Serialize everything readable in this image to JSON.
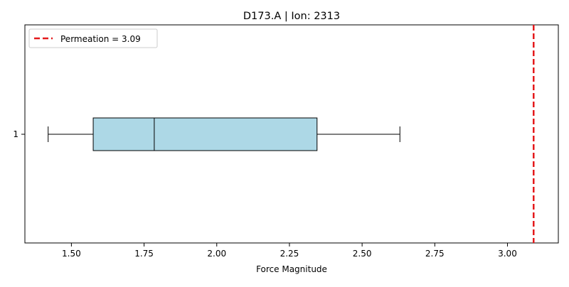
{
  "chart_data": {
    "type": "boxplot",
    "orientation": "horizontal",
    "title": "D173.A | Ion: 2313",
    "xlabel": "Force Magnitude",
    "ylabel": "",
    "xlim": [
      1.34,
      3.175
    ],
    "xticks": [
      "1.50",
      "1.75",
      "2.00",
      "2.25",
      "2.50",
      "2.75",
      "3.00"
    ],
    "xtick_values": [
      1.5,
      1.75,
      2.0,
      2.25,
      2.5,
      2.75,
      3.0
    ],
    "yticks": [
      "1"
    ],
    "box": {
      "category": "1",
      "whisker_low": 1.42,
      "q1": 1.575,
      "median": 1.785,
      "q3": 2.345,
      "whisker_high": 2.63,
      "fill_color": "#add8e6"
    },
    "reference_line": {
      "label": "Permeation = 3.09",
      "value": 3.09,
      "color": "#e41a1c",
      "style": "dashed"
    },
    "legend": {
      "position": "upper-left"
    }
  }
}
